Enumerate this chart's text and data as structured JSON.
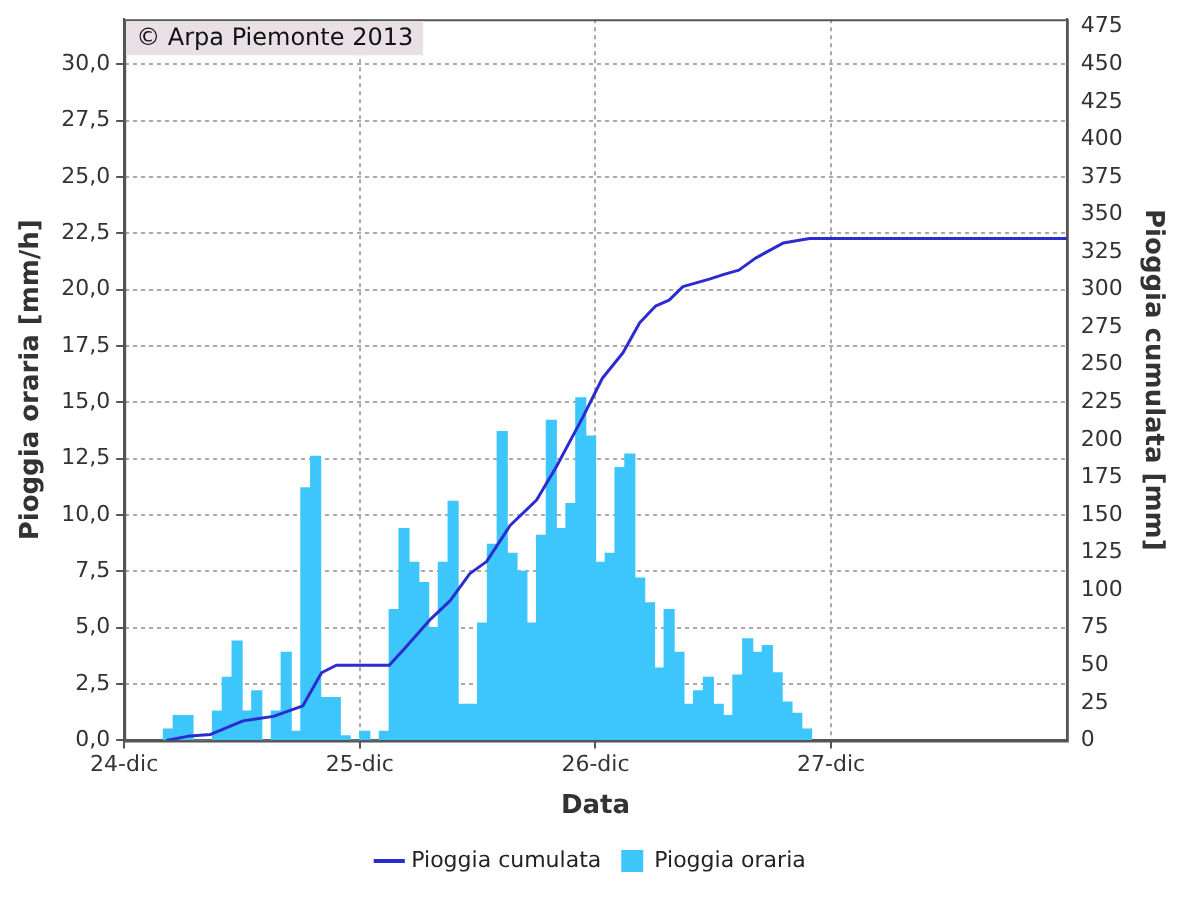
{
  "chart_data": {
    "type": "bar",
    "xlabel": "Data",
    "ylabel": "Pioggia oraria [mm/h]",
    "y2label": "Pioggia cumulata [mm]",
    "annotations": [
      "© Arpa Piemonte 2013"
    ],
    "x": [
      "2013-12-24T04:30",
      "2013-12-24T05:30",
      "2013-12-24T06:30",
      "2013-12-24T07:30",
      "2013-12-24T08:30",
      "2013-12-24T09:30",
      "2013-12-24T10:30",
      "2013-12-24T11:30",
      "2013-12-24T12:30",
      "2013-12-24T13:30",
      "2013-12-24T14:30",
      "2013-12-24T15:30",
      "2013-12-24T16:30",
      "2013-12-24T17:30",
      "2013-12-24T18:30",
      "2013-12-24T19:30",
      "2013-12-24T20:30",
      "2013-12-24T21:30",
      "2013-12-24T22:30",
      "2013-12-24T23:30",
      "2013-12-25T00:30",
      "2013-12-25T01:30",
      "2013-12-25T02:30",
      "2013-12-25T03:30",
      "2013-12-25T04:30",
      "2013-12-25T05:30",
      "2013-12-25T06:30",
      "2013-12-25T07:30",
      "2013-12-25T08:30",
      "2013-12-25T09:30",
      "2013-12-25T10:30",
      "2013-12-25T11:30",
      "2013-12-25T12:30",
      "2013-12-25T13:30",
      "2013-12-25T14:30",
      "2013-12-25T15:30",
      "2013-12-25T16:30",
      "2013-12-25T17:30",
      "2013-12-25T18:30",
      "2013-12-25T19:30",
      "2013-12-25T20:30",
      "2013-12-25T21:30",
      "2013-12-25T22:30",
      "2013-12-25T23:30",
      "2013-12-26T00:30",
      "2013-12-26T01:30",
      "2013-12-26T02:30",
      "2013-12-26T03:30",
      "2013-12-26T04:30",
      "2013-12-26T05:30",
      "2013-12-26T06:30",
      "2013-12-26T07:30",
      "2013-12-26T08:30",
      "2013-12-26T09:30",
      "2013-12-26T10:30",
      "2013-12-26T11:30",
      "2013-12-26T12:30",
      "2013-12-26T13:30",
      "2013-12-26T14:30",
      "2013-12-26T15:30",
      "2013-12-26T16:30",
      "2013-12-26T17:30",
      "2013-12-26T18:30",
      "2013-12-26T19:30",
      "2013-12-26T20:30",
      "2013-12-26T21:30"
    ],
    "series": [
      {
        "name": "Pioggia cumulata",
        "type": "line",
        "axis": "y2",
        "color": "#2b2bd0",
        "x": [
          "2013-12-24T04:18",
          "2013-12-24T06:42",
          "2013-12-24T08:48",
          "2013-12-24T12:06",
          "2013-12-24T15:12",
          "2013-12-24T18:12",
          "2013-12-24T20:06",
          "2013-12-24T21:36",
          "2013-12-25T03:00",
          "2013-12-25T04:24",
          "2013-12-25T07:06",
          "2013-12-25T09:12",
          "2013-12-25T11:12",
          "2013-12-25T12:54",
          "2013-12-25T15:18",
          "2013-12-25T18:00",
          "2013-12-25T20:00",
          "2013-12-25T22:42",
          "2013-12-26T00:42",
          "2013-12-26T02:48",
          "2013-12-26T04:30",
          "2013-12-26T06:06",
          "2013-12-26T07:30",
          "2013-12-26T08:54",
          "2013-12-26T11:36",
          "2013-12-26T13:00",
          "2013-12-26T14:36",
          "2013-12-26T16:18",
          "2013-12-26T19:06",
          "2013-12-26T21:48",
          "2013-12-28T00:00"
        ],
        "values": [
          0,
          3,
          4,
          13,
          16,
          23,
          45,
          50,
          50,
          60,
          80,
          93,
          111,
          119,
          143,
          160,
          182,
          215,
          241,
          258,
          278,
          289,
          293,
          302,
          307,
          310,
          313,
          321,
          331,
          334,
          334
        ]
      },
      {
        "name": "Pioggia oraria",
        "color": "#3cc6fb",
        "values": [
          0.5,
          1.1,
          1.1,
          0,
          0,
          1.3,
          2.8,
          4.4,
          1.3,
          2.2,
          0,
          1.3,
          3.9,
          0.4,
          11.2,
          12.6,
          1.9,
          1.9,
          0.2,
          0,
          0.4,
          0,
          0.4,
          5.8,
          9.4,
          7.9,
          7.0,
          5.0,
          7.9,
          10.6,
          1.6,
          1.6,
          5.2,
          8.7,
          13.7,
          8.3,
          7.5,
          5.2,
          9.1,
          14.2,
          9.4,
          10.5,
          15.2,
          13.5,
          7.9,
          8.3,
          12.1,
          12.7,
          7.2,
          6.1,
          3.2,
          5.8,
          3.9,
          1.6,
          2.2,
          2.8,
          1.6,
          1.1,
          2.9,
          4.5,
          3.9,
          4.2,
          3.0,
          1.7,
          1.2,
          0.5
        ]
      }
    ],
    "xlim": [
      "2013-12-24",
      "2013-12-28"
    ],
    "xticks": [
      {
        "value": "2013-12-24",
        "label": "24-dic"
      },
      {
        "value": "2013-12-25",
        "label": "25-dic"
      },
      {
        "value": "2013-12-26",
        "label": "26-dic"
      },
      {
        "value": "2013-12-27",
        "label": "27-dic"
      }
    ],
    "ylim": [
      0,
      32
    ],
    "yticks": [
      {
        "value": 0,
        "label": "0,0"
      },
      {
        "value": 2.5,
        "label": "2,5"
      },
      {
        "value": 5,
        "label": "5,0"
      },
      {
        "value": 7.5,
        "label": "7,5"
      },
      {
        "value": 10,
        "label": "10,0"
      },
      {
        "value": 12.5,
        "label": "12,5"
      },
      {
        "value": 15,
        "label": "15,0"
      },
      {
        "value": 17.5,
        "label": "17,5"
      },
      {
        "value": 20,
        "label": "20,0"
      },
      {
        "value": 22.5,
        "label": "22,5"
      },
      {
        "value": 25,
        "label": "25,0"
      },
      {
        "value": 27.5,
        "label": "27,5"
      },
      {
        "value": 30,
        "label": "30,0"
      }
    ],
    "y2lim": [
      0,
      480
    ],
    "y2ticks": [
      0,
      25,
      50,
      75,
      100,
      125,
      150,
      175,
      200,
      225,
      250,
      275,
      300,
      325,
      350,
      375,
      400,
      425,
      450,
      475
    ],
    "grid": true,
    "legend": "bottom"
  }
}
